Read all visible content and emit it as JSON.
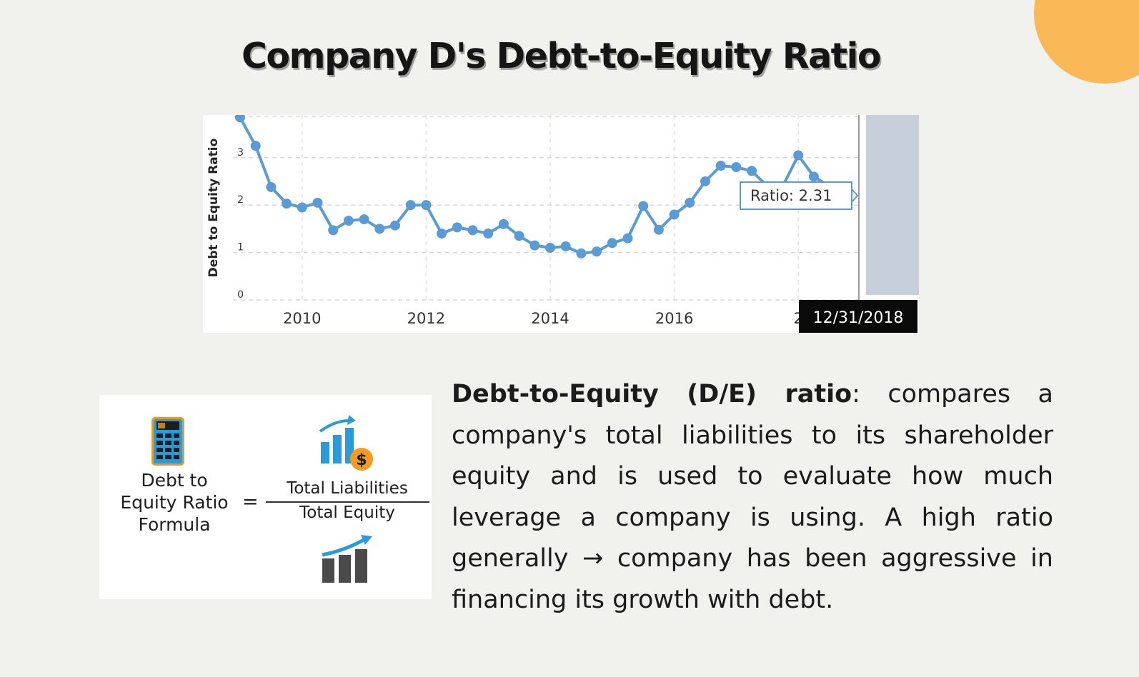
{
  "page": {
    "title": "Company D's Debt-to-Equity Ratio",
    "accent_color": "#fbb857",
    "background_color": "#f1f1ed"
  },
  "chart_data": {
    "type": "line",
    "title": "",
    "xlabel": "",
    "ylabel": "Debt to Equity Ratio",
    "ylim": [
      0,
      3.9
    ],
    "xlim": [
      2009.0,
      2019.0
    ],
    "x_tick_labels": [
      "2010",
      "2012",
      "2014",
      "2016",
      "2"
    ],
    "y_tick_labels": [
      "0",
      "1",
      "2",
      "3"
    ],
    "grid": true,
    "line_color": "#5b9bd5",
    "series": [
      {
        "name": "Ratio",
        "x": [
          2009.0,
          2009.25,
          2009.5,
          2009.75,
          2010.0,
          2010.25,
          2010.5,
          2010.75,
          2011.0,
          2011.25,
          2011.5,
          2011.75,
          2012.0,
          2012.25,
          2012.5,
          2012.75,
          2013.0,
          2013.25,
          2013.5,
          2013.75,
          2014.0,
          2014.25,
          2014.5,
          2014.75,
          2015.0,
          2015.25,
          2015.5,
          2015.75,
          2016.0,
          2016.25,
          2016.5,
          2016.75,
          2017.0,
          2017.25,
          2017.5,
          2017.75,
          2018.0,
          2018.25,
          2018.5,
          2018.75
        ],
        "y": [
          3.85,
          3.25,
          2.38,
          2.03,
          1.95,
          2.05,
          1.47,
          1.67,
          1.7,
          1.5,
          1.57,
          2.0,
          2.0,
          1.4,
          1.53,
          1.47,
          1.4,
          1.6,
          1.35,
          1.15,
          1.1,
          1.13,
          0.98,
          1.02,
          1.2,
          1.3,
          1.98,
          1.48,
          1.8,
          2.05,
          2.5,
          2.83,
          2.8,
          2.72,
          2.4,
          2.4,
          3.05,
          2.6,
          2.4,
          2.31
        ]
      }
    ],
    "tooltip": {
      "label": "Ratio: 2.31",
      "date": "12/31/2018"
    }
  },
  "formula": {
    "label_line1": "Debt to",
    "label_line2": "Equity Ratio",
    "label_line3": "Formula",
    "equals": "=",
    "numerator": "Total Liabilities",
    "denominator": "Total Equity",
    "dollar_sign": "$",
    "icons": [
      "calculator-icon",
      "growth-bar-chart-icon",
      "dollar-coin-icon",
      "growth-bar-chart-gray-icon"
    ]
  },
  "description": {
    "term": "Debt-to-Equity (D/E) ratio",
    "text": ": compares a company's total liabilities to its shareholder equity and is used to evaluate how much leverage a company is using. A high ratio generally → company has been aggressive in financing its growth with debt."
  }
}
